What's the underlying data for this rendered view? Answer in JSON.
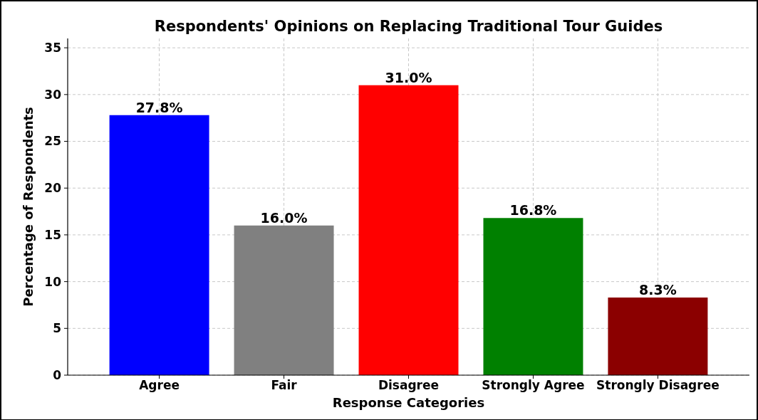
{
  "chart_data": {
    "type": "bar",
    "title": "Respondents' Opinions on Replacing Traditional Tour Guides",
    "xlabel": "Response Categories",
    "ylabel": "Percentage of Respondents",
    "categories": [
      "Agree",
      "Fair",
      "Disagree",
      "Strongly Agree",
      "Strongly Disagree"
    ],
    "values": [
      27.8,
      16.0,
      31.0,
      16.8,
      8.3
    ],
    "colors": [
      "#0000ff",
      "#808080",
      "#ff0000",
      "#008000",
      "#8b0000"
    ],
    "value_labels": [
      "27.8%",
      "16.0%",
      "31.0%",
      "16.8%",
      "8.3%"
    ],
    "ylim": [
      0,
      36
    ],
    "yticks": [
      0,
      5,
      10,
      15,
      20,
      25,
      30,
      35
    ],
    "grid": true
  }
}
